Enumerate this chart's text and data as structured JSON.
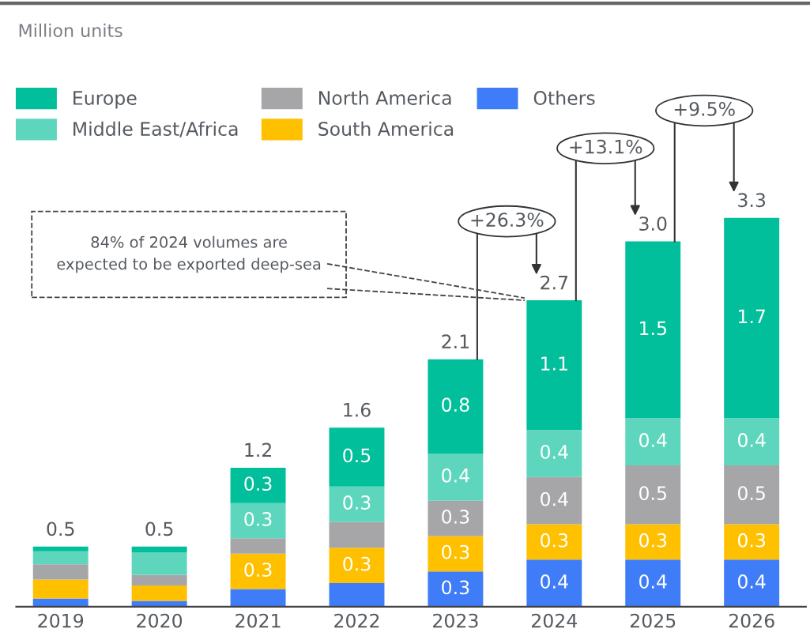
{
  "chart_data": {
    "type": "bar",
    "stacked": true,
    "categories": [
      "2019",
      "2020",
      "2021",
      "2022",
      "2023",
      "2024",
      "2025",
      "2026"
    ],
    "series": [
      {
        "name": "Others",
        "color": "#3f7cf7",
        "values": [
          0.07,
          0.05,
          0.15,
          0.2,
          0.3,
          0.4,
          0.4,
          0.4
        ],
        "value_labels": [
          null,
          null,
          null,
          null,
          "0.3",
          "0.4",
          "0.4",
          "0.4"
        ]
      },
      {
        "name": "South America",
        "color": "#ffc000",
        "values": [
          0.16,
          0.13,
          0.3,
          0.3,
          0.3,
          0.3,
          0.3,
          0.3
        ],
        "value_labels": [
          null,
          null,
          "0.3",
          "0.3",
          "0.3",
          "0.3",
          "0.3",
          "0.3"
        ]
      },
      {
        "name": "North America",
        "color": "#a6a6a8",
        "values": [
          0.13,
          0.09,
          0.13,
          0.22,
          0.3,
          0.4,
          0.5,
          0.5
        ],
        "value_labels": [
          null,
          null,
          null,
          null,
          "0.3",
          "0.4",
          "0.5",
          "0.5"
        ]
      },
      {
        "name": "Middle East/Africa",
        "color": "#5dd6bd",
        "values": [
          0.11,
          0.19,
          0.3,
          0.3,
          0.4,
          0.4,
          0.4,
          0.4
        ],
        "value_labels": [
          null,
          null,
          "0.3",
          "0.3",
          "0.4",
          "0.4",
          "0.4",
          "0.4"
        ]
      },
      {
        "name": "Europe",
        "color": "#00bf9a",
        "values": [
          0.04,
          0.05,
          0.3,
          0.5,
          0.8,
          1.1,
          1.5,
          1.7
        ],
        "value_labels": [
          null,
          null,
          "0.3",
          "0.5",
          "0.8",
          "1.1",
          "1.5",
          "1.7"
        ]
      }
    ],
    "totals": [
      "0.5",
      "0.5",
      "1.2",
      "1.6",
      "2.1",
      "2.7",
      "3.0",
      "3.3"
    ],
    "legend": "top left",
    "grid": false,
    "annotations": [
      "Million units",
      "+26.3%",
      "+13.1%",
      "+9.5%",
      "84% of 2024 volumes are\nexpected to be exported deep-sea"
    ]
  }
}
